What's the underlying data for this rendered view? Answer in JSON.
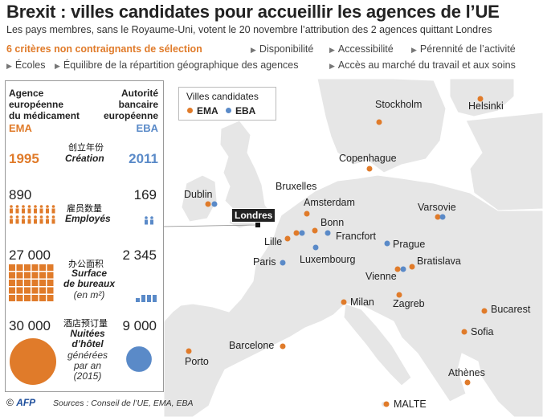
{
  "header": {
    "title": "Brexit : villes candidates pour accueillir les agences de l’UE",
    "subtitle": "Les pays membres, sans le Royaume-Uni, votent le 20 novembre l’attribution des 2 agences quittant Londres"
  },
  "criteria": {
    "title": "6 critères non contraignants de sélection",
    "items": [
      "Disponibilité",
      "Accessibilité",
      "Pérennité de l’activité",
      "Écoles",
      "Équilibre de la répartition géographique des agences",
      "Accès au marché du travail et aux soins"
    ]
  },
  "panel": {
    "ema_header": [
      "Agence",
      "européenne",
      "du médicament"
    ],
    "ema_abbr": "EMA",
    "eba_header": [
      "Autorité",
      "bancaire",
      "européenne"
    ],
    "eba_abbr": "EBA",
    "creation": {
      "cn": "创立年份",
      "label": "Création",
      "ema": "1995",
      "eba": "2011"
    },
    "employees": {
      "cn": "雇员数量",
      "label": "Employés",
      "ema": "890",
      "eba": "169",
      "ema_ratio": 1.0,
      "eba_ratio": 0.19
    },
    "office": {
      "cn": "办公面积",
      "label_lines": [
        "Surface",
        "de bureaux"
      ],
      "unit": "(en m²)",
      "ema": "27 000",
      "eba": "2 345",
      "ema_ratio": 1.0,
      "eba_ratio": 0.087
    },
    "hotel": {
      "cn": "酒店预订量",
      "label_lines": [
        "Nuitées",
        "d’hôtel"
      ],
      "sub_lines": [
        "générées",
        "par an",
        "(2015)"
      ],
      "ema": "30 000",
      "eba": "9 000",
      "ema_ratio": 1.0,
      "eba_ratio": 0.3
    }
  },
  "legend": {
    "title": "Villes candidates",
    "ema": "EMA",
    "eba": "EBA"
  },
  "map": {
    "london_label": "Londres",
    "cities": {
      "stockholm": "Stockholm",
      "helsinki": "Helsinki",
      "copenhague": "Copenhague",
      "dublin": "Dublin",
      "bruxelles": "Bruxelles",
      "amsterdam": "Amsterdam",
      "varsovie": "Varsovie",
      "bonn": "Bonn",
      "francfort": "Francfort",
      "lille": "Lille",
      "prague": "Prague",
      "paris": "Paris",
      "luxembourg": "Luxembourg",
      "bratislava": "Bratislava",
      "vienne": "Vienne",
      "milan": "Milan",
      "zagreb": "Zagreb",
      "bucarest": "Bucarest",
      "sofia": "Sofia",
      "barcelone": "Barcelone",
      "porto": "Porto",
      "athenes": "Athènes",
      "malte": "MALTE"
    }
  },
  "footer": {
    "copyright": "©",
    "logo": "AFP",
    "sources": "Sources : Conseil de l’UE, EMA, EBA"
  },
  "colors": {
    "ema": "#e07b2a",
    "eba": "#5a8ac8",
    "land": "#e6e6e6",
    "sea": "#ffffff"
  }
}
